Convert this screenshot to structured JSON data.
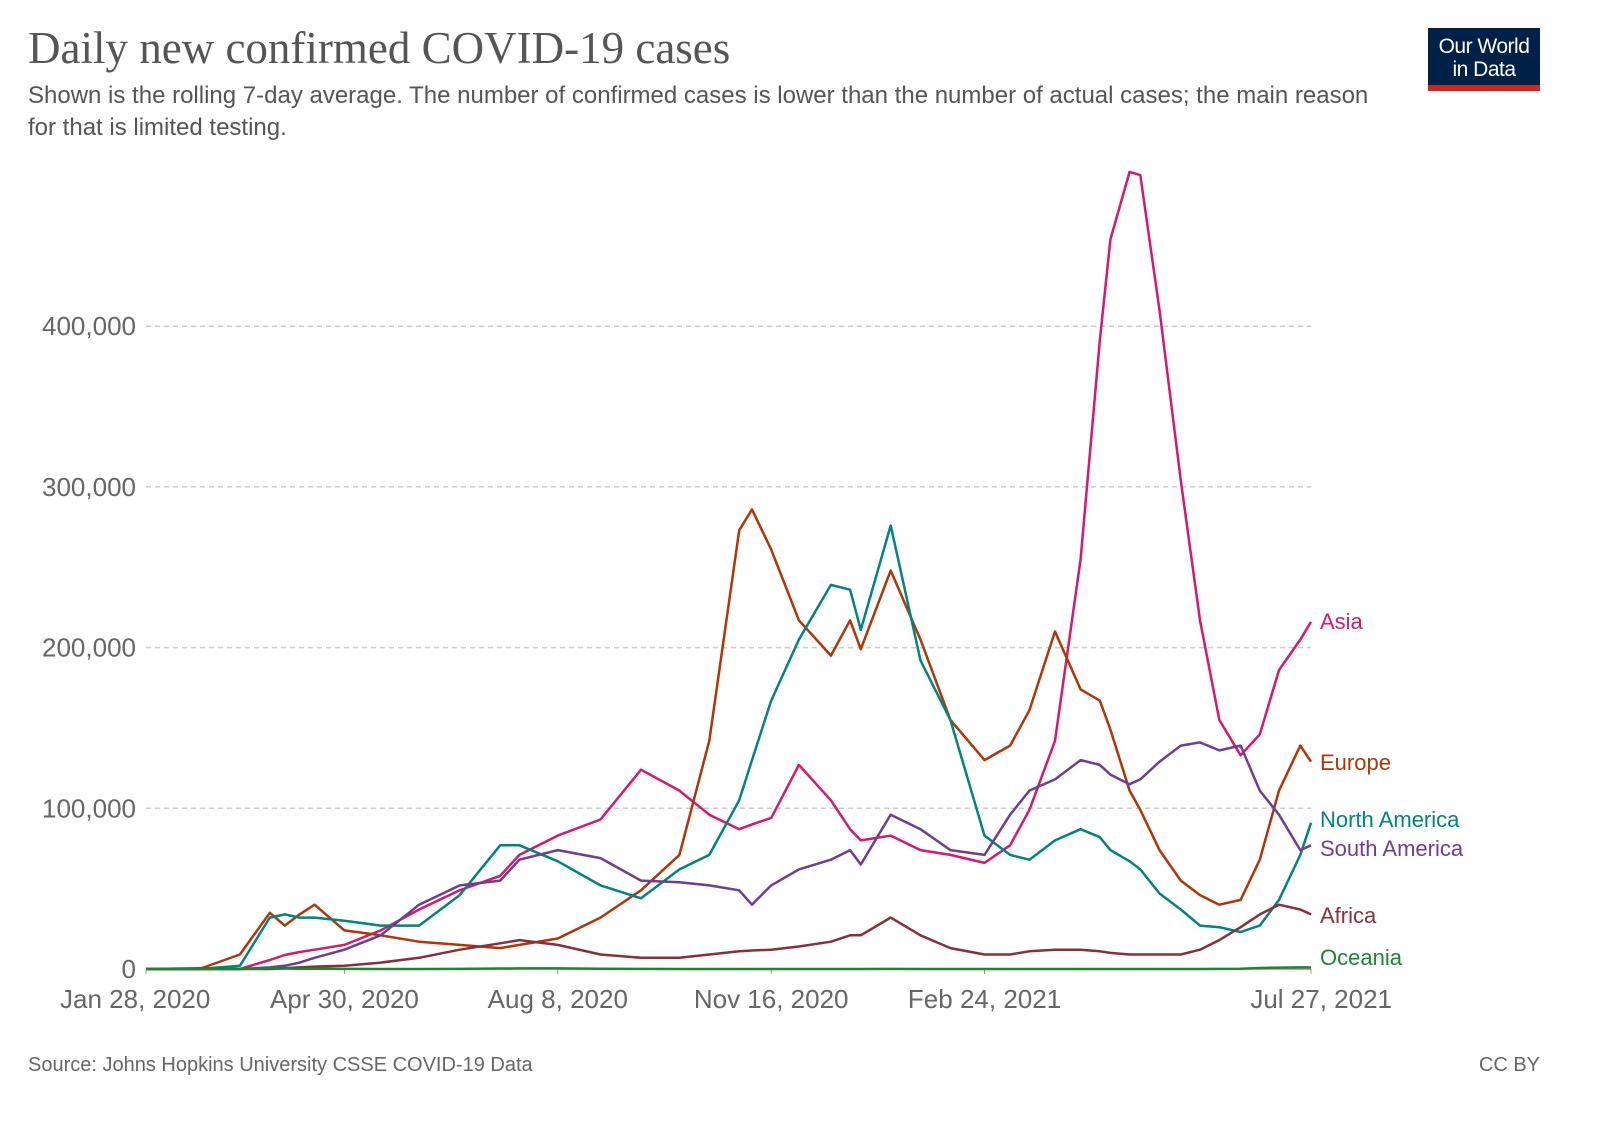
{
  "logo": {
    "line1": "Our World",
    "line2": "in Data"
  },
  "footer": {
    "source": "Source: Johns Hopkins University CSSE COVID-19 Data",
    "license": "CC BY"
  },
  "chart_data": {
    "type": "line",
    "title": "Daily new confirmed COVID-19 cases",
    "subtitle": "Shown is the rolling 7-day average. The number of confirmed cases is lower than the number of actual cases; the main reason for that is limited testing.",
    "xlabel": "",
    "ylabel": "",
    "xlim": [
      "2020-01-28",
      "2021-07-27"
    ],
    "ylim": [
      0,
      500000
    ],
    "grid": "horizontal dashed",
    "legend": "right (inline labels at line ends)",
    "x_ticks": [
      {
        "date": "2020-01-28",
        "label": "Jan 28, 2020"
      },
      {
        "date": "2020-04-30",
        "label": "Apr 30, 2020"
      },
      {
        "date": "2020-08-08",
        "label": "Aug 8, 2020"
      },
      {
        "date": "2020-11-16",
        "label": "Nov 16, 2020"
      },
      {
        "date": "2021-02-24",
        "label": "Feb 24, 2021"
      },
      {
        "date": "2021-07-27",
        "label": "Jul 27, 2021"
      }
    ],
    "y_ticks": [
      {
        "value": 0,
        "label": "0"
      },
      {
        "value": 100000,
        "label": "100,000"
      },
      {
        "value": 200000,
        "label": "200,000"
      },
      {
        "value": 300000,
        "label": "300,000"
      },
      {
        "value": 400000,
        "label": "400,000"
      }
    ],
    "x": [
      "2020-01-28",
      "2020-02-22",
      "2020-03-12",
      "2020-03-26",
      "2020-04-02",
      "2020-04-09",
      "2020-04-16",
      "2020-04-30",
      "2020-05-17",
      "2020-06-04",
      "2020-06-23",
      "2020-07-12",
      "2020-07-21",
      "2020-08-08",
      "2020-08-28",
      "2020-09-16",
      "2020-10-04",
      "2020-10-18",
      "2020-11-01",
      "2020-11-07",
      "2020-11-16",
      "2020-11-29",
      "2020-12-14",
      "2020-12-23",
      "2020-12-28",
      "2021-01-11",
      "2021-01-25",
      "2021-02-08",
      "2021-02-24",
      "2021-03-08",
      "2021-03-17",
      "2021-03-29",
      "2021-04-10",
      "2021-04-19",
      "2021-04-24",
      "2021-05-03",
      "2021-05-08",
      "2021-05-17",
      "2021-05-27",
      "2021-06-05",
      "2021-06-14",
      "2021-06-24",
      "2021-07-03",
      "2021-07-12",
      "2021-07-22",
      "2021-07-27"
    ],
    "series": [
      {
        "name": "Asia",
        "color": "#d6186e",
        "values": [
          0,
          500,
          0,
          5600,
          8700,
          10600,
          12000,
          15000,
          24000,
          37000,
          49000,
          58000,
          71000,
          83000,
          93000,
          124000,
          111000,
          96000,
          87000,
          90000,
          94000,
          127000,
          105000,
          87000,
          80000,
          83000,
          74000,
          71000,
          66000,
          77000,
          99000,
          142000,
          255000,
          391000,
          454000,
          496000,
          494000,
          410000,
          304000,
          217000,
          155000,
          133000,
          146000,
          186000,
          205000,
          216000
        ]
      },
      {
        "name": "Europe",
        "color": "#b13507",
        "values": [
          0,
          0,
          9000,
          35000,
          27000,
          34000,
          40000,
          24000,
          21000,
          17000,
          15000,
          13000,
          15000,
          19000,
          32000,
          49000,
          71000,
          142000,
          273000,
          286000,
          261000,
          217000,
          195000,
          217000,
          199000,
          248000,
          205000,
          155000,
          130000,
          139000,
          161000,
          210000,
          174000,
          167000,
          149000,
          111000,
          99000,
          74000,
          55000,
          46000,
          40000,
          43000,
          68000,
          111000,
          139000,
          129000
        ]
      },
      {
        "name": "North America",
        "color": "#00847e",
        "values": [
          0,
          0,
          2000,
          32000,
          34000,
          32000,
          32000,
          30000,
          27000,
          27000,
          46000,
          77000,
          77000,
          67000,
          52000,
          44000,
          62000,
          71000,
          105000,
          130000,
          167000,
          205000,
          239000,
          236000,
          211000,
          276000,
          192000,
          155000,
          83000,
          71000,
          68000,
          80000,
          87000,
          82000,
          74000,
          67000,
          62000,
          47000,
          37000,
          27000,
          26000,
          23000,
          27000,
          43000,
          71000,
          91000
        ]
      },
      {
        "name": "South America",
        "color": "#6d3e91",
        "values": [
          0,
          0,
          0,
          1000,
          2000,
          4000,
          7000,
          12000,
          21000,
          40000,
          52000,
          55000,
          68000,
          74000,
          69000,
          55000,
          54000,
          52000,
          49000,
          40000,
          52000,
          62000,
          68000,
          74000,
          65000,
          96000,
          87000,
          74000,
          71000,
          96000,
          111000,
          118000,
          130000,
          127000,
          121000,
          115000,
          118000,
          129000,
          139000,
          141000,
          136000,
          139000,
          111000,
          96000,
          74000,
          77000
        ]
      },
      {
        "name": "Africa",
        "color": "#883039",
        "values": [
          0,
          0,
          0,
          0,
          500,
          1000,
          1500,
          2000,
          4000,
          7000,
          12000,
          16000,
          18000,
          15000,
          9000,
          7000,
          7000,
          9000,
          11000,
          11500,
          12000,
          14000,
          17000,
          21000,
          21000,
          32000,
          21000,
          13000,
          9000,
          9000,
          11000,
          12000,
          12000,
          11000,
          10000,
          9000,
          9000,
          9000,
          9000,
          12000,
          18000,
          26000,
          34000,
          40000,
          37000,
          34000
        ]
      },
      {
        "name": "Oceania",
        "color": "#18872e",
        "values": [
          0,
          0,
          100,
          300,
          300,
          200,
          100,
          50,
          20,
          20,
          50,
          300,
          400,
          400,
          200,
          50,
          20,
          20,
          20,
          20,
          20,
          20,
          20,
          30,
          30,
          40,
          20,
          10,
          10,
          10,
          10,
          10,
          20,
          20,
          20,
          20,
          20,
          20,
          20,
          20,
          50,
          200,
          600,
          900,
          1000,
          1000
        ]
      }
    ]
  }
}
